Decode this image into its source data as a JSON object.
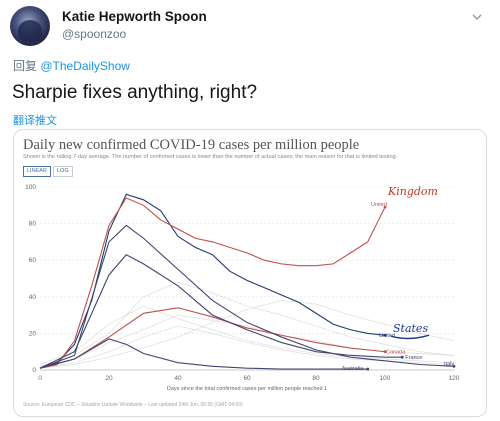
{
  "tweet": {
    "author_name": "Katie Hepworth Spoon",
    "handle": "@spoonzoo",
    "reply_prefix": "回复",
    "reply_to": "@TheDailyShow",
    "text": "Sharpie fixes anything, right?",
    "translate_label": "翻译推文"
  },
  "chart": {
    "title": "Daily new confirmed COVID-19 cases per million people",
    "subtitle": "Shown is the rolling 7-day average. The number of confirmed cases is lower than the number of actual cases; the main reason for that is limited testing.",
    "toggles": [
      "LINEAR",
      "LOG"
    ],
    "active_toggle": "LINEAR",
    "source": "Source: European CDC – Situation Update Worldwide – Last updated 24th Jun, 05:55 (GMT-04:00)",
    "handwritten": {
      "kingdom": "Kingdom",
      "states": "States"
    }
  },
  "chart_data": {
    "type": "line",
    "title": "Daily new confirmed COVID-19 cases per million people",
    "xlabel": "Days since the total confirmed cases per million people reached 1",
    "ylabel": "",
    "xlim": [
      0,
      120
    ],
    "ylim": [
      0,
      100
    ],
    "x_ticks": [
      0,
      20,
      40,
      60,
      80,
      100,
      120
    ],
    "y_ticks": [
      0,
      20,
      40,
      60,
      80,
      100
    ],
    "grid": true,
    "series": [
      {
        "name": "United States",
        "color": "#1f3b6e",
        "x": [
          0,
          5,
          10,
          15,
          20,
          25,
          30,
          35,
          40,
          45,
          50,
          55,
          60,
          65,
          70,
          75,
          80,
          85,
          90,
          95,
          100
        ],
        "y": [
          1,
          4,
          14,
          38,
          76,
          96,
          93,
          87,
          73,
          67,
          63,
          54,
          49,
          45,
          41,
          37,
          31,
          25,
          22,
          20,
          19
        ]
      },
      {
        "name": "United Kingdom",
        "color": "#c0504d",
        "x": [
          0,
          5,
          10,
          15,
          20,
          25,
          30,
          35,
          40,
          45,
          50,
          55,
          60,
          65,
          70,
          75,
          80,
          85,
          90,
          95,
          100
        ],
        "y": [
          1,
          3,
          16,
          46,
          79,
          94,
          90,
          82,
          77,
          72,
          70,
          67,
          64,
          60,
          58,
          57,
          57,
          58,
          64,
          70,
          89
        ]
      },
      {
        "name": "Canada",
        "color": "#c0504d",
        "x": [
          0,
          10,
          20,
          30,
          40,
          50,
          60,
          70,
          80,
          90,
          100
        ],
        "y": [
          1,
          6,
          18,
          31,
          34,
          29,
          23,
          19,
          15,
          12,
          10
        ]
      },
      {
        "name": "France",
        "color": "#40466e",
        "x": [
          0,
          10,
          20,
          25,
          30,
          40,
          50,
          60,
          70,
          80,
          90,
          100,
          105
        ],
        "y": [
          1,
          10,
          52,
          63,
          58,
          46,
          30,
          22,
          15,
          10,
          8,
          7,
          7
        ]
      },
      {
        "name": "Italy",
        "color": "#40466e",
        "x": [
          0,
          10,
          20,
          25,
          30,
          40,
          50,
          60,
          70,
          80,
          90,
          100,
          110,
          120
        ],
        "y": [
          1,
          8,
          70,
          79,
          72,
          55,
          38,
          26,
          18,
          11,
          7,
          5,
          3,
          2
        ]
      },
      {
        "name": "Australia",
        "color": "#40466e",
        "x": [
          0,
          10,
          20,
          25,
          30,
          40,
          50,
          60,
          70,
          80,
          90,
          95
        ],
        "y": [
          1,
          6,
          17,
          14,
          9,
          4,
          2,
          1,
          0.5,
          0.5,
          0.5,
          0.5
        ]
      }
    ]
  }
}
